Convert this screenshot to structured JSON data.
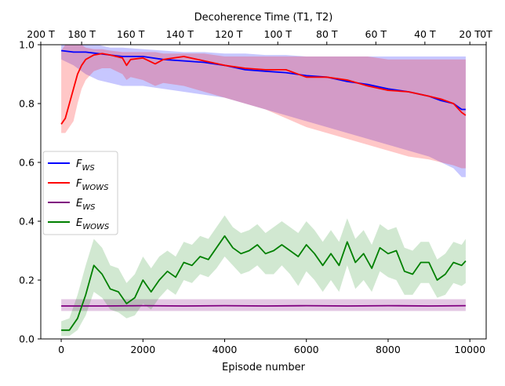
{
  "chart_data": {
    "type": "line",
    "xlabel": "Episode number",
    "ylabel": "",
    "xlim": [
      -500,
      10400
    ],
    "ylim": [
      0.0,
      1.0
    ],
    "x_ticks": [
      0,
      2000,
      4000,
      6000,
      8000,
      10000
    ],
    "x_tick_labels": [
      "0",
      "2000",
      "4000",
      "6000",
      "8000",
      "10000"
    ],
    "y_ticks": [
      0.0,
      0.2,
      0.4,
      0.6,
      0.8,
      1.0
    ],
    "y_tick_labels": [
      "0.0",
      "0.2",
      "0.4",
      "0.6",
      "0.8",
      "1.0"
    ],
    "top_axis": {
      "label": "Decoherence Time (T1, T2)",
      "ticks": [
        {
          "x": -500,
          "label": "200 T"
        },
        {
          "x": 500,
          "label": "180 T"
        },
        {
          "x": 1700,
          "label": "160 T"
        },
        {
          "x": 2900,
          "label": "140 T"
        },
        {
          "x": 4100,
          "label": "120 T"
        },
        {
          "x": 5300,
          "label": "100 T"
        },
        {
          "x": 6500,
          "label": "80 T"
        },
        {
          "x": 7700,
          "label": "60 T"
        },
        {
          "x": 8900,
          "label": "40 T"
        },
        {
          "x": 10000,
          "label": "20 T"
        },
        {
          "x": 10400,
          "label": "0T"
        }
      ]
    },
    "legend_position": "center-left",
    "grid": false,
    "series": [
      {
        "name": "F_WS",
        "color": "#0000ff",
        "band_color": "#0000ff",
        "band_opacity": 0.22,
        "x": [
          0,
          300,
          600,
          900,
          1200,
          1500,
          2000,
          2500,
          3000,
          3500,
          4000,
          4500,
          5000,
          5500,
          6000,
          6500,
          7000,
          7500,
          8000,
          8500,
          9000,
          9300,
          9600,
          9800,
          9900
        ],
        "values": [
          0.98,
          0.975,
          0.975,
          0.97,
          0.965,
          0.96,
          0.96,
          0.95,
          0.945,
          0.94,
          0.93,
          0.915,
          0.91,
          0.905,
          0.895,
          0.89,
          0.875,
          0.865,
          0.85,
          0.84,
          0.825,
          0.81,
          0.8,
          0.78,
          0.78
        ],
        "lower": [
          0.95,
          0.93,
          0.9,
          0.88,
          0.87,
          0.86,
          0.86,
          0.85,
          0.84,
          0.83,
          0.82,
          0.8,
          0.78,
          0.76,
          0.74,
          0.72,
          0.7,
          0.68,
          0.66,
          0.64,
          0.62,
          0.6,
          0.58,
          0.55,
          0.55
        ],
        "upper": [
          1.0,
          1.0,
          1.0,
          1.0,
          0.99,
          0.99,
          0.985,
          0.98,
          0.975,
          0.975,
          0.97,
          0.97,
          0.965,
          0.965,
          0.96,
          0.96,
          0.96,
          0.96,
          0.96,
          0.96,
          0.96,
          0.96,
          0.96,
          0.96,
          0.96
        ]
      },
      {
        "name": "F_WOWS",
        "color": "#ff0000",
        "band_color": "#ff0000",
        "band_opacity": 0.22,
        "x": [
          0,
          100,
          200,
          300,
          400,
          500,
          600,
          800,
          1000,
          1200,
          1500,
          1600,
          1700,
          2000,
          2300,
          2500,
          3000,
          3500,
          4000,
          4500,
          5000,
          5500,
          6000,
          6500,
          7000,
          7500,
          8000,
          8500,
          9000,
          9300,
          9600,
          9800,
          9900
        ],
        "values": [
          0.73,
          0.75,
          0.8,
          0.85,
          0.9,
          0.93,
          0.95,
          0.965,
          0.97,
          0.965,
          0.955,
          0.93,
          0.95,
          0.955,
          0.935,
          0.95,
          0.96,
          0.945,
          0.93,
          0.92,
          0.915,
          0.915,
          0.89,
          0.89,
          0.88,
          0.86,
          0.845,
          0.84,
          0.825,
          0.815,
          0.8,
          0.77,
          0.76
        ],
        "lower": [
          0.7,
          0.7,
          0.72,
          0.74,
          0.8,
          0.85,
          0.88,
          0.91,
          0.92,
          0.92,
          0.9,
          0.88,
          0.89,
          0.88,
          0.86,
          0.87,
          0.86,
          0.84,
          0.82,
          0.8,
          0.78,
          0.75,
          0.72,
          0.7,
          0.68,
          0.66,
          0.64,
          0.62,
          0.61,
          0.6,
          0.59,
          0.58,
          0.58
        ],
        "upper": [
          0.98,
          1.0,
          1.0,
          1.0,
          1.0,
          1.0,
          0.99,
          0.985,
          0.985,
          0.98,
          0.975,
          0.975,
          0.975,
          0.975,
          0.975,
          0.97,
          0.97,
          0.97,
          0.96,
          0.96,
          0.96,
          0.96,
          0.96,
          0.96,
          0.96,
          0.96,
          0.95,
          0.95,
          0.95,
          0.95,
          0.95,
          0.95,
          0.95
        ]
      },
      {
        "name": "E_WS",
        "color": "#800080",
        "band_color": "#800080",
        "band_opacity": 0.22,
        "x": [
          0,
          1000,
          2000,
          3000,
          4000,
          5000,
          6000,
          7000,
          8000,
          9000,
          9900
        ],
        "values": [
          0.112,
          0.112,
          0.113,
          0.112,
          0.113,
          0.112,
          0.113,
          0.112,
          0.113,
          0.112,
          0.113
        ],
        "lower": [
          0.095,
          0.095,
          0.095,
          0.095,
          0.095,
          0.095,
          0.095,
          0.095,
          0.095,
          0.095,
          0.095
        ],
        "upper": [
          0.135,
          0.135,
          0.135,
          0.135,
          0.135,
          0.135,
          0.135,
          0.135,
          0.135,
          0.135,
          0.135
        ]
      },
      {
        "name": "E_WOWS",
        "color": "#008000",
        "band_color": "#008000",
        "band_opacity": 0.18,
        "x": [
          0,
          200,
          400,
          600,
          800,
          1000,
          1200,
          1400,
          1600,
          1800,
          2000,
          2200,
          2400,
          2600,
          2800,
          3000,
          3200,
          3400,
          3600,
          3800,
          4000,
          4200,
          4400,
          4600,
          4800,
          5000,
          5200,
          5400,
          5600,
          5800,
          6000,
          6200,
          6400,
          6600,
          6800,
          7000,
          7200,
          7400,
          7600,
          7800,
          8000,
          8200,
          8400,
          8600,
          8800,
          9000,
          9200,
          9400,
          9600,
          9800,
          9900
        ],
        "values": [
          0.03,
          0.03,
          0.07,
          0.15,
          0.25,
          0.22,
          0.17,
          0.16,
          0.12,
          0.14,
          0.2,
          0.16,
          0.2,
          0.23,
          0.21,
          0.26,
          0.25,
          0.28,
          0.27,
          0.31,
          0.35,
          0.31,
          0.29,
          0.3,
          0.32,
          0.29,
          0.3,
          0.32,
          0.3,
          0.28,
          0.32,
          0.29,
          0.25,
          0.29,
          0.25,
          0.33,
          0.26,
          0.29,
          0.24,
          0.31,
          0.29,
          0.3,
          0.23,
          0.22,
          0.26,
          0.26,
          0.2,
          0.22,
          0.26,
          0.25,
          0.265
        ],
        "lower": [
          0.01,
          0.01,
          0.03,
          0.08,
          0.16,
          0.14,
          0.1,
          0.09,
          0.07,
          0.08,
          0.12,
          0.1,
          0.14,
          0.17,
          0.15,
          0.2,
          0.19,
          0.22,
          0.21,
          0.24,
          0.28,
          0.25,
          0.22,
          0.23,
          0.25,
          0.22,
          0.22,
          0.25,
          0.22,
          0.18,
          0.23,
          0.2,
          0.16,
          0.2,
          0.16,
          0.25,
          0.17,
          0.2,
          0.16,
          0.23,
          0.21,
          0.2,
          0.15,
          0.15,
          0.19,
          0.19,
          0.14,
          0.15,
          0.19,
          0.18,
          0.19
        ],
        "upper": [
          0.06,
          0.07,
          0.15,
          0.25,
          0.34,
          0.31,
          0.25,
          0.24,
          0.19,
          0.22,
          0.28,
          0.24,
          0.28,
          0.3,
          0.28,
          0.33,
          0.32,
          0.35,
          0.34,
          0.38,
          0.42,
          0.38,
          0.36,
          0.37,
          0.39,
          0.36,
          0.38,
          0.4,
          0.38,
          0.36,
          0.4,
          0.37,
          0.33,
          0.37,
          0.33,
          0.41,
          0.34,
          0.37,
          0.32,
          0.39,
          0.37,
          0.38,
          0.31,
          0.3,
          0.33,
          0.33,
          0.27,
          0.29,
          0.33,
          0.32,
          0.34
        ]
      }
    ]
  }
}
